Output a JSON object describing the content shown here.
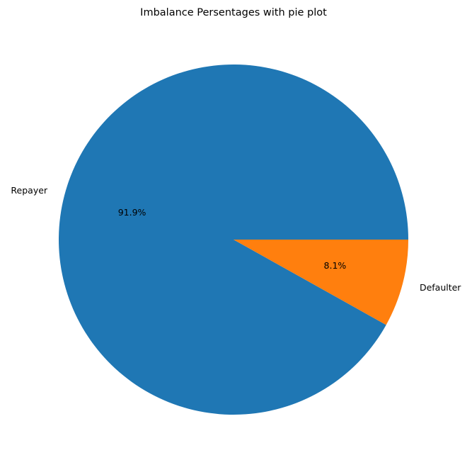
{
  "chart_data": {
    "type": "pie",
    "title": "Imbalance Persentages with pie plot",
    "labels": [
      "Repayer",
      "Defaulter"
    ],
    "values": [
      91.9,
      8.1
    ],
    "autopct_labels": [
      "91.9%",
      "8.1%"
    ],
    "colors": [
      "#1f77b4",
      "#ff7f0e"
    ],
    "start_angle_deg": 0,
    "direction": "counterclockwise",
    "legend": "none"
  }
}
